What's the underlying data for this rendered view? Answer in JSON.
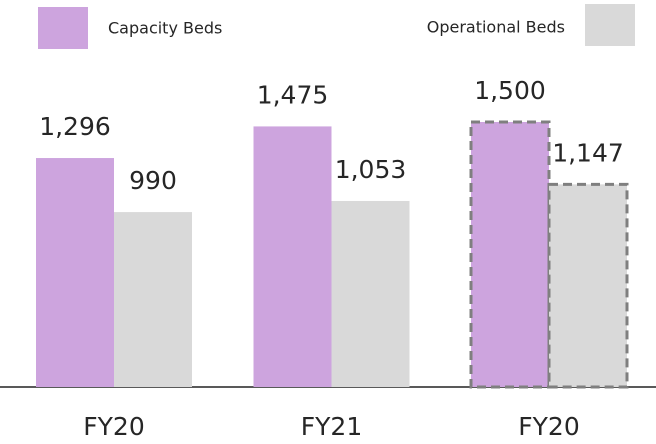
{
  "chart_data": {
    "type": "bar",
    "categories": [
      "FY20",
      "FY21",
      "FY20"
    ],
    "series": [
      {
        "name": "Capacity Beds",
        "color": "#cda4de",
        "values": [
          1296,
          1475,
          1500
        ],
        "value_labels": [
          "1,296",
          "1,475",
          "1,500"
        ]
      },
      {
        "name": "Operational Beds",
        "color": "#d9d9d9",
        "values": [
          990,
          1053,
          1147
        ],
        "value_labels": [
          "990",
          "1,053",
          "1,147"
        ]
      }
    ],
    "dashed": [
      false,
      false,
      true
    ],
    "ylim": [
      0,
      1500
    ]
  }
}
